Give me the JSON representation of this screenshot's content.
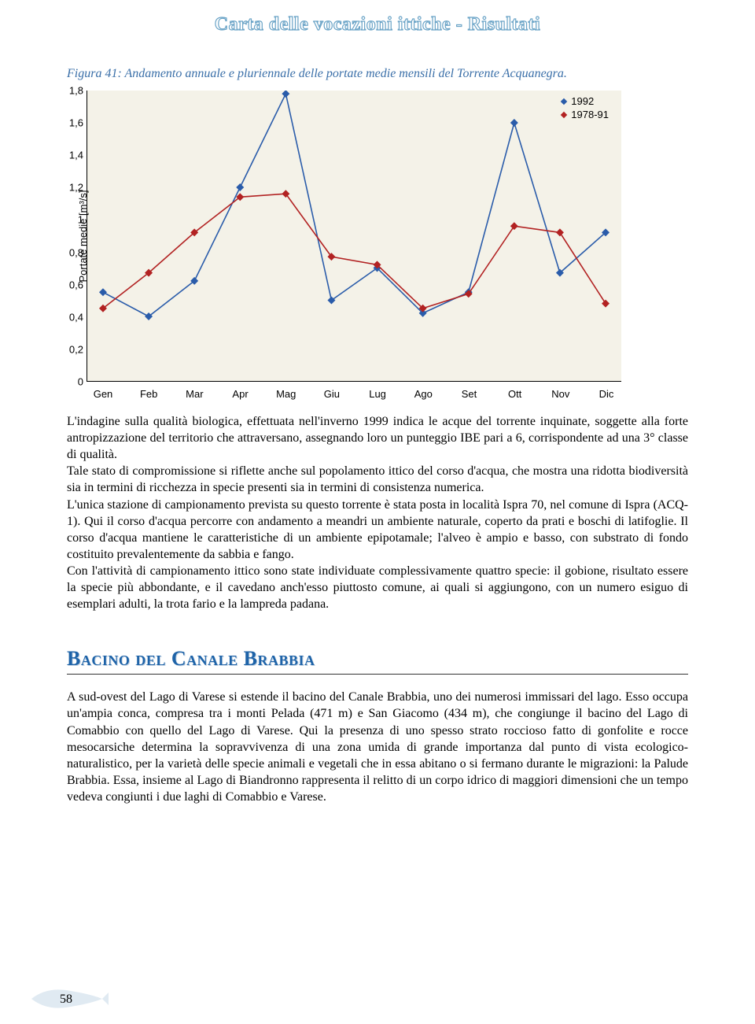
{
  "header": {
    "title": "Carta delle vocazioni ittiche - Risultati"
  },
  "figure": {
    "caption": "Figura 41: Andamento annuale e pluriennale delle portate medie mensili del Torrente Acquanegra."
  },
  "chart": {
    "type": "line",
    "y_axis_label": "Portate medie [m³/s]",
    "background_color": "#f4f2e8",
    "axis_color": "#000000",
    "ylim": [
      0,
      1.8
    ],
    "y_ticks": [
      "0",
      "0,2",
      "0,4",
      "0,6",
      "0,8",
      "1",
      "1,2",
      "1,4",
      "1,6",
      "1,8"
    ],
    "x_labels": [
      "Gen",
      "Feb",
      "Mar",
      "Apr",
      "Mag",
      "Giu",
      "Lug",
      "Ago",
      "Set",
      "Ott",
      "Nov",
      "Dic"
    ],
    "series": [
      {
        "name": "1992",
        "color": "#2a5caa",
        "marker": "diamond",
        "values": [
          0.55,
          0.4,
          0.62,
          1.2,
          1.78,
          0.5,
          0.7,
          0.42,
          0.55,
          1.6,
          0.67,
          0.92
        ]
      },
      {
        "name": "1978-91",
        "color": "#b22222",
        "marker": "diamond",
        "values": [
          0.45,
          0.67,
          0.92,
          1.14,
          1.16,
          0.77,
          0.72,
          0.45,
          0.54,
          0.96,
          0.92,
          0.48
        ]
      }
    ],
    "legend_labels": {
      "s1": "1992",
      "s2": "1978-91"
    },
    "line_width": 1.6,
    "marker_size": 5
  },
  "paragraphs": {
    "p1": "L'indagine sulla qualità biologica, effettuata nell'inverno 1999 indica le acque del torrente inquinate, soggette alla forte antropizzazione del territorio che attraversano, assegnando loro un punteggio IBE pari a 6, corrispondente ad una 3° classe di qualità.",
    "p2": "Tale stato di compromissione si riflette anche sul popolamento ittico del corso d'acqua, che mostra una ridotta biodiversità sia in termini di ricchezza in specie presenti sia in termini di consistenza numerica.",
    "p3": "L'unica stazione di campionamento prevista su questo torrente è stata posta in località Ispra 70, nel comune di Ispra (ACQ-1). Qui il corso d'acqua percorre con andamento a meandri un ambiente naturale, coperto da prati e boschi di latifoglie. Il corso d'acqua mantiene le caratteristiche di un ambiente epipotamale; l'alveo è ampio e basso, con substrato di fondo costituito prevalentemente da sabbia e fango.",
    "p4": "Con l'attività di campionamento ittico sono state individuate complessivamente quattro specie: il gobione, risultato essere la specie più abbondante, e il cavedano anch'esso piuttosto comune, ai quali si aggiungono, con un numero esiguo di esemplari adulti, la trota fario e la lampreda padana."
  },
  "section": {
    "heading": "Bacino del Canale Brabbia",
    "body": "A sud-ovest del Lago di Varese si estende il bacino del Canale Brabbia, uno dei numerosi immissari del lago. Esso occupa un'ampia conca, compresa tra i monti Pelada (471 m) e San Giacomo (434 m), che congiunge il bacino del Lago di Comabbio con quello del Lago di Varese. Qui la presenza di uno spesso strato roccioso fatto di gonfolite e rocce mesocarsiche determina la sopravvivenza di una zona umida di grande importanza dal punto di vista ecologico-naturalistico, per la varietà delle specie animali e vegetali che in essa abitano o si fermano durante le migrazioni: la Palude Brabbia. Essa, insieme al Lago di Biandronno rappresenta il relitto di un corpo idrico di maggiori dimensioni che un tempo vedeva congiunti i due laghi di Comabbio e Varese."
  },
  "footer": {
    "page_number": "58"
  }
}
